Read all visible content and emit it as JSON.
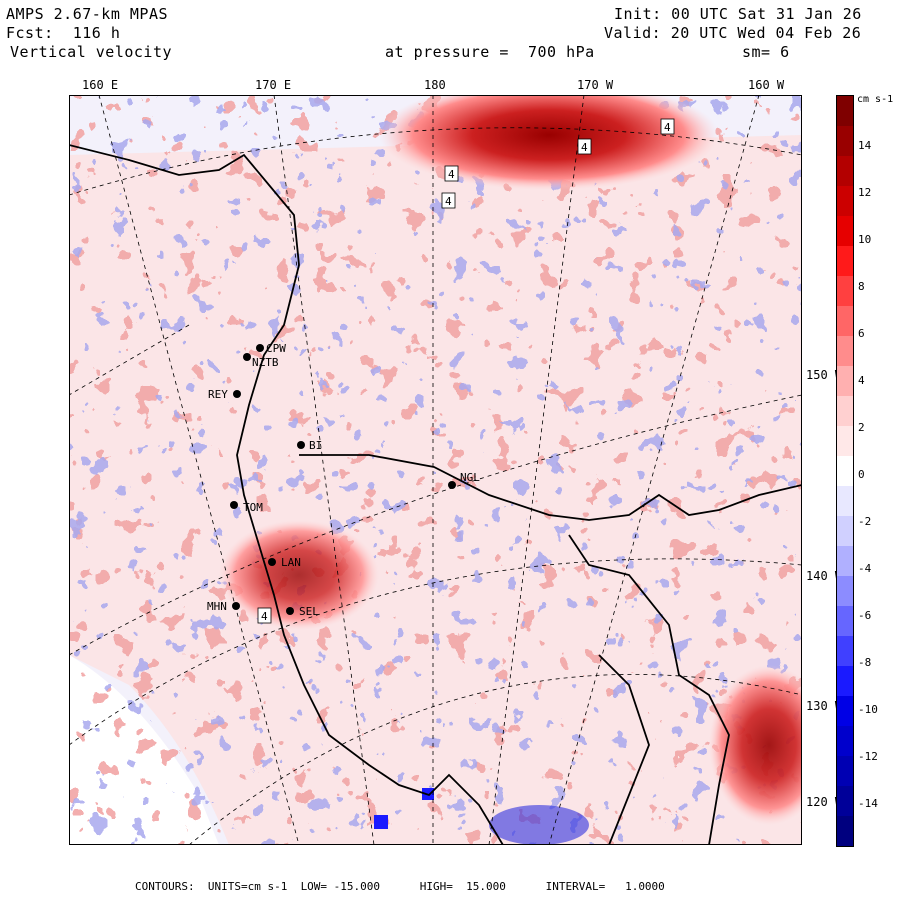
{
  "header": {
    "model": "AMPS 2.67-km MPAS",
    "forecast": "Fcst:  116 h",
    "variable": "Vertical velocity",
    "init": "Init: 00 UTC Sat 31 Jan 26",
    "valid": "Valid: 20 UTC Wed 04 Feb 26",
    "pressure": "at pressure =  700 hPa",
    "smoothing": "sm= 6"
  },
  "map": {
    "longitude_labels": [
      "160 E",
      "170 E",
      "180",
      "170 W",
      "160 W"
    ],
    "latitude_labels": [
      "150 W",
      "140 W",
      "130 W",
      "120 W"
    ],
    "stations": [
      "CPW",
      "NZTB",
      "REY",
      "BI",
      "NGL",
      "TOM",
      "LAN",
      "MHN",
      "SEL"
    ],
    "contour_label": "4"
  },
  "colorbar": {
    "units": "cm s-1",
    "ticks": [
      "14",
      "12",
      "10",
      "8",
      "6",
      "4",
      "2",
      "0",
      "-2",
      "-4",
      "-6",
      "-8",
      "-10",
      "-12",
      "-14"
    ],
    "colors_top_to_bottom": [
      "#7f0000",
      "#990000",
      "#b30000",
      "#cc0000",
      "#e60000",
      "#ff1a1a",
      "#ff4040",
      "#ff6666",
      "#ff8c8c",
      "#ffb0b0",
      "#ffd0d0",
      "#ffe8e8",
      "#ffffff",
      "#e8e8ff",
      "#d0d0ff",
      "#b0b0ff",
      "#8c8cff",
      "#6666ff",
      "#4040ff",
      "#1a1aff",
      "#0000e6",
      "#0000cc",
      "#0000b3",
      "#000099",
      "#00007f"
    ]
  },
  "footer": {
    "text": "CONTOURS:  UNITS=cm s-1  LOW= -15.000      HIGH=  15.000      INTERVAL=   1.0000"
  }
}
